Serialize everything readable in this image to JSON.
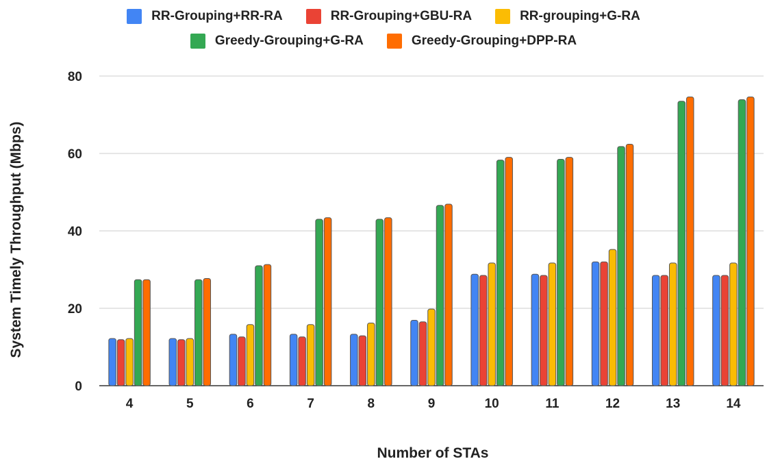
{
  "chart_data": {
    "type": "bar",
    "xlabel": "Number of STAs",
    "ylabel": "System Timely Throughput (Mbps)",
    "ylim": [
      0,
      80
    ],
    "yticks": [
      0,
      20,
      40,
      60,
      80
    ],
    "grid": true,
    "legend_position": "top-center",
    "categories": [
      "4",
      "5",
      "6",
      "7",
      "8",
      "9",
      "10",
      "11",
      "12",
      "13",
      "14"
    ],
    "series": [
      {
        "name": "RR-Grouping+RR-RA",
        "color": "#4285f4",
        "values": [
          12.2,
          12.2,
          13.3,
          13.3,
          13.3,
          16.9,
          28.8,
          28.8,
          32.0,
          28.5,
          28.5
        ]
      },
      {
        "name": "RR-Grouping+GBU-RA",
        "color": "#ea4335",
        "values": [
          11.9,
          11.9,
          12.6,
          12.6,
          12.9,
          16.5,
          28.5,
          28.5,
          32.0,
          28.5,
          28.5
        ]
      },
      {
        "name": "RR-grouping+G-RA",
        "color": "#fbbc04",
        "values": [
          12.2,
          12.2,
          15.8,
          15.8,
          16.2,
          19.8,
          31.7,
          31.7,
          35.2,
          31.7,
          31.7
        ]
      },
      {
        "name": "Greedy-Grouping+G-RA",
        "color": "#34a853",
        "values": [
          27.4,
          27.4,
          31.0,
          43.0,
          43.0,
          46.6,
          58.3,
          58.5,
          61.8,
          73.5,
          73.9
        ]
      },
      {
        "name": "Greedy-Grouping+DPP-RA",
        "color": "#ff6d01",
        "values": [
          27.4,
          27.7,
          31.3,
          43.4,
          43.4,
          46.9,
          59.0,
          59.0,
          62.4,
          74.6,
          74.6
        ]
      }
    ]
  }
}
